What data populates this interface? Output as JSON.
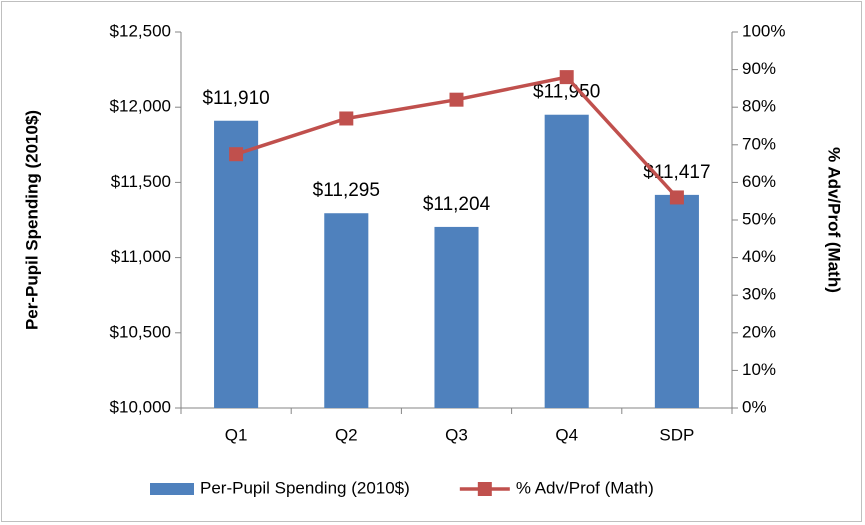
{
  "chart_data": {
    "type": "bar",
    "categories": [
      "Q1",
      "Q2",
      "Q3",
      "Q4",
      "SDP"
    ],
    "ylabel": "Per-Pupil Spending (2010$)",
    "y2label": "% Adv/Prof (Math)",
    "ylim": [
      10000,
      12500
    ],
    "yticks": [
      {
        "value": 10000,
        "label": "$10,000"
      },
      {
        "value": 10500,
        "label": "$10,500"
      },
      {
        "value": 11000,
        "label": "$11,000"
      },
      {
        "value": 11500,
        "label": "$11,500"
      },
      {
        "value": 12000,
        "label": "$12,000"
      },
      {
        "value": 12500,
        "label": "$12,500"
      }
    ],
    "y2lim": [
      0,
      100
    ],
    "y2ticks": [
      {
        "value": 0,
        "label": "0%"
      },
      {
        "value": 10,
        "label": "10%"
      },
      {
        "value": 20,
        "label": "20%"
      },
      {
        "value": 30,
        "label": "30%"
      },
      {
        "value": 40,
        "label": "40%"
      },
      {
        "value": 50,
        "label": "50%"
      },
      {
        "value": 60,
        "label": "60%"
      },
      {
        "value": 70,
        "label": "70%"
      },
      {
        "value": 80,
        "label": "80%"
      },
      {
        "value": 90,
        "label": "90%"
      },
      {
        "value": 100,
        "label": "100%"
      }
    ],
    "grid": false,
    "legend": "bottom",
    "series": [
      {
        "name": "Per-Pupil Spending (2010$)",
        "type": "bar",
        "color": "#4f81bd",
        "values": [
          11910,
          11295,
          11204,
          11950,
          11417
        ],
        "value_labels": [
          "$11,910",
          "$11,295",
          "$11,204",
          "$11,950",
          "$11,417"
        ]
      },
      {
        "name": "% Adv/Prof (Math)",
        "type": "line",
        "axis": "y2",
        "color": "#c0504d",
        "values": [
          67.5,
          77,
          82,
          88,
          56
        ]
      }
    ]
  }
}
